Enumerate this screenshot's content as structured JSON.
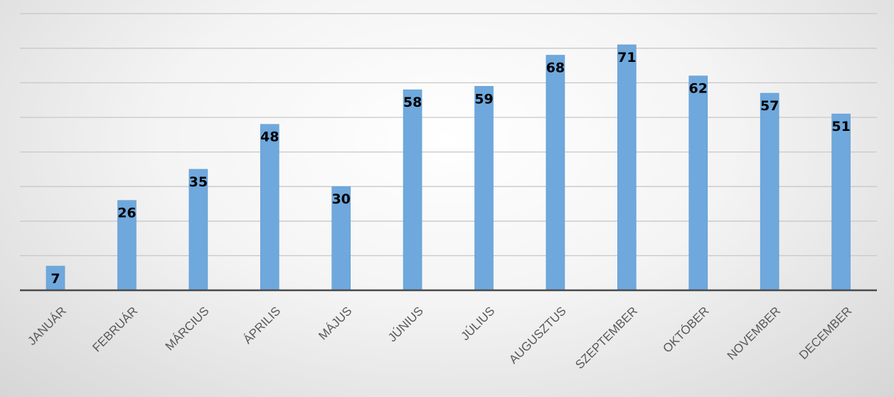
{
  "chart_data": {
    "type": "bar",
    "categories": [
      "JANUÁR",
      "FEBRUÁR",
      "MÁRCIUS",
      "ÁPRILIS",
      "MÁJUS",
      "JÚNIUS",
      "JÚLIUS",
      "AUGUSZTUS",
      "SZEPTEMBER",
      "OKTÓBER",
      "NOVEMBER",
      "DECEMBER"
    ],
    "values": [
      7,
      26,
      35,
      48,
      30,
      58,
      59,
      68,
      71,
      62,
      57,
      51
    ],
    "data_labels": [
      "7",
      "26",
      "35",
      "48",
      "30",
      "58",
      "59",
      "68",
      "71",
      "62",
      "57",
      "51"
    ],
    "title": "",
    "xlabel": "",
    "ylabel": "",
    "ylim": [
      0,
      80
    ],
    "y_gridline_step": 10,
    "grid": true,
    "legend": "none",
    "colors": {
      "bar": "#6fa8dc",
      "bar_edge": "#5b9bd5",
      "gridline": "#c8c8c8",
      "axis": "#4a4a4a",
      "data_label": "#000000",
      "tick_label": "#595959"
    }
  }
}
